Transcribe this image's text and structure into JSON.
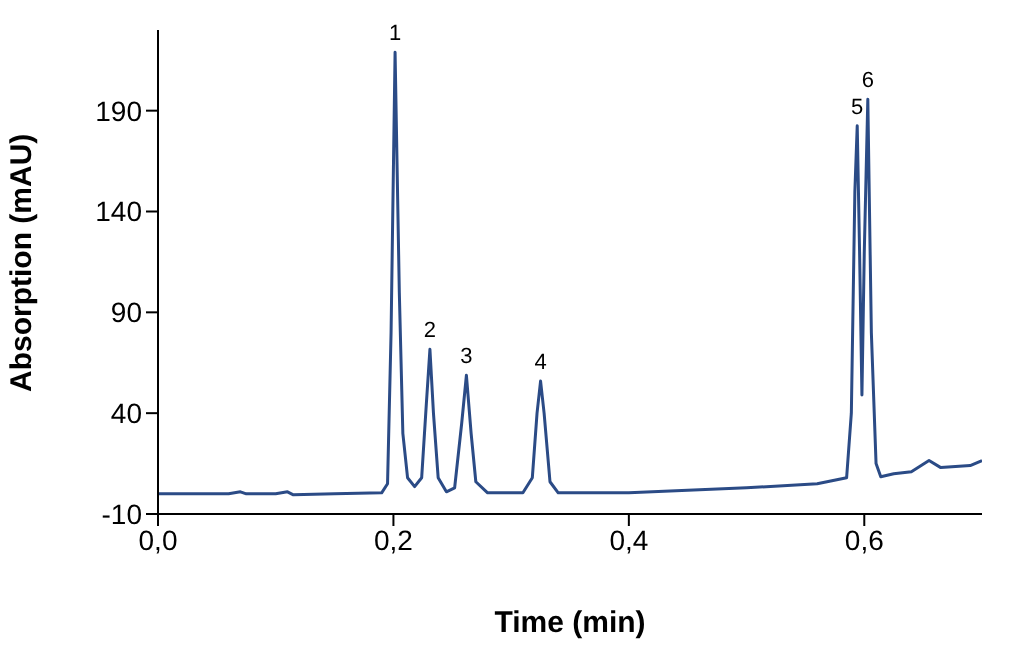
{
  "chart_data": {
    "type": "line",
    "xlabel": "Time (min)",
    "ylabel": "Absorption (mAU)",
    "xlim": [
      0,
      0.7
    ],
    "ylim": [
      -10,
      230
    ],
    "xticks": [
      {
        "value": 0,
        "label": "0,0"
      },
      {
        "value": 0.2,
        "label": "0,2"
      },
      {
        "value": 0.4,
        "label": "0,4"
      },
      {
        "value": 0.6,
        "label": "0,6"
      }
    ],
    "yticks": [
      -10,
      40,
      90,
      140,
      190
    ],
    "grid": false,
    "legend": false,
    "marker": "none",
    "line_style": "solid",
    "series": [
      {
        "color": "#2b4b86",
        "x": [
          0,
          0.03,
          0.06,
          0.07,
          0.075,
          0.1,
          0.11,
          0.115,
          0.15,
          0.19,
          0.195,
          0.198,
          0.2014,
          0.205,
          0.208,
          0.212,
          0.218,
          0.224,
          0.228,
          0.231,
          0.234,
          0.238,
          0.245,
          0.252,
          0.258,
          0.262,
          0.266,
          0.27,
          0.28,
          0.31,
          0.318,
          0.322,
          0.325,
          0.328,
          0.333,
          0.34,
          0.4,
          0.5,
          0.56,
          0.585,
          0.589,
          0.592,
          0.594,
          0.596,
          0.598,
          0.6,
          0.603,
          0.606,
          0.61,
          0.614,
          0.625,
          0.64,
          0.655,
          0.665,
          0.69,
          0.7
        ],
        "values": [
          0,
          0,
          0,
          1,
          0,
          0,
          1,
          -0.5,
          0,
          0.5,
          5,
          80,
          219,
          100,
          30,
          8,
          3.6,
          8,
          45,
          71.7,
          40,
          8,
          1,
          3,
          35,
          58.8,
          30,
          6,
          0.5,
          0.5,
          8,
          40,
          55.9,
          40,
          6,
          0.5,
          0.5,
          3,
          5,
          8,
          40,
          150,
          182.5,
          120,
          49,
          120,
          195.7,
          80,
          15,
          8.5,
          10,
          11,
          16.5,
          13,
          14,
          16.5
        ]
      }
    ],
    "annotations": [
      {
        "text": "1",
        "x": 0.2014,
        "y": 219
      },
      {
        "text": "2",
        "x": 0.231,
        "y": 71.7
      },
      {
        "text": "3",
        "x": 0.262,
        "y": 58.8
      },
      {
        "text": "4",
        "x": 0.325,
        "y": 55.9
      },
      {
        "text": "5",
        "x": 0.594,
        "y": 182.5
      },
      {
        "text": "6",
        "x": 0.603,
        "y": 195.7
      }
    ]
  }
}
